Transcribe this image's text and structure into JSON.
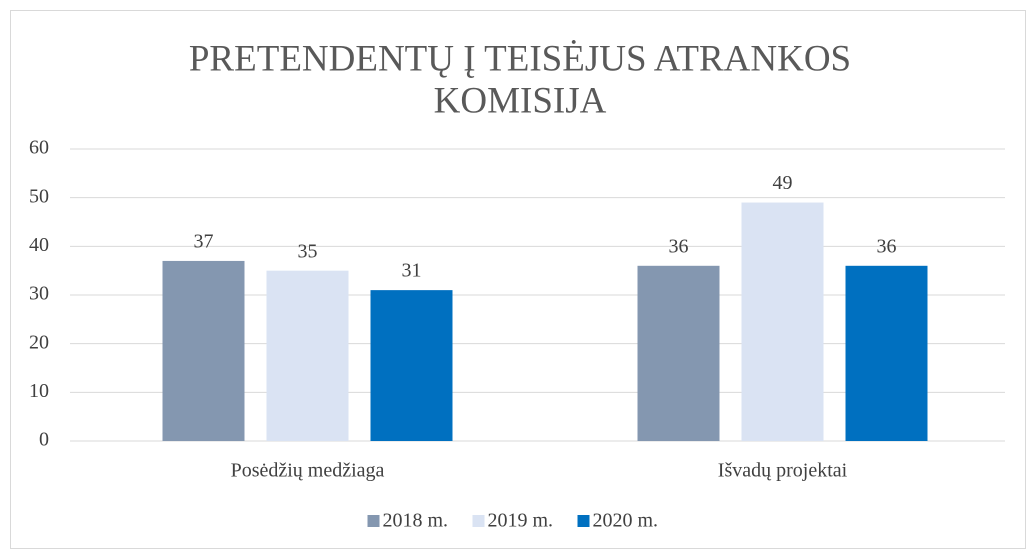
{
  "chart_data": {
    "type": "bar",
    "title": [
      "PRETENDENTŲ Į TEISĖJUS ATRANKOS",
      "KOMISIJA"
    ],
    "categories": [
      "Posėdžių medžiaga",
      "Išvadų projektai"
    ],
    "series": [
      {
        "name": "2018 m.",
        "color": "#8497b0",
        "values": [
          37,
          36
        ]
      },
      {
        "name": "2019 m.",
        "color": "#dae3f3",
        "values": [
          35,
          49
        ]
      },
      {
        "name": "2020 m.",
        "color": "#0070c0",
        "values": [
          31,
          36
        ]
      }
    ],
    "ylim": [
      0,
      60
    ],
    "yticks": [
      0,
      10,
      20,
      30,
      40,
      50,
      60
    ],
    "grid": true,
    "legend": "bottom"
  }
}
